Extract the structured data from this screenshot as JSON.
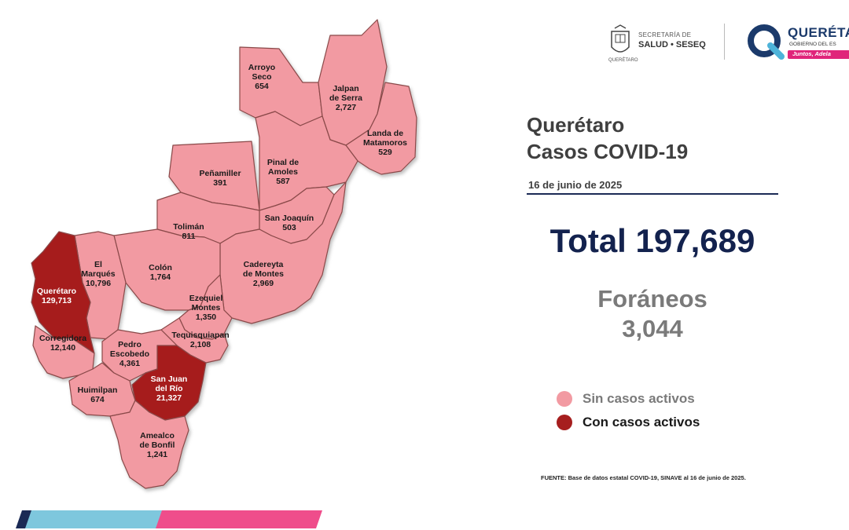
{
  "header": {
    "secretaria_line1": "SECRETARÍA DE",
    "secretaria_line2": "SALUD • SESEQ",
    "crest_caption": "QUERÉTARO",
    "gov_title": "QUERÉTA",
    "gov_subtitle": "GOBIERNO DEL ES",
    "gov_slogan": "Juntos, Adela"
  },
  "report": {
    "title_line1": "Querétaro",
    "title_line2": "Casos COVID-19",
    "date": "16 de junio de 2025",
    "total": "Total 197,689",
    "foraneos_label": "Foráneos",
    "foraneos_value": "3,044"
  },
  "legend": {
    "items": [
      {
        "label": "Sin casos activos",
        "color": "#f29aa2"
      },
      {
        "label": "Con casos activos",
        "color": "#a61e1e"
      }
    ]
  },
  "source": "FUENTE: Base de datos estatal  COVID-19,  SINAVE  al 16 de junio de 2025.",
  "map": {
    "municipalities": [
      {
        "id": "arroyo-seco",
        "label_lines": [
          "Arroyo",
          "Seco"
        ],
        "cases": "654",
        "active": false
      },
      {
        "id": "jalpan-de-serra",
        "label_lines": [
          "Jalpan",
          "de Serra"
        ],
        "cases": "2,727",
        "active": false
      },
      {
        "id": "landa-de-matamoros",
        "label_lines": [
          "Landa de",
          "Matamoros"
        ],
        "cases": "529",
        "active": false
      },
      {
        "id": "pinal-de-amoles",
        "label_lines": [
          "Pinal de",
          "Amoles"
        ],
        "cases": "587",
        "active": false
      },
      {
        "id": "penamiller",
        "label_lines": [
          "Peñamiller"
        ],
        "cases": "391",
        "active": false
      },
      {
        "id": "san-joaquin",
        "label_lines": [
          "San Joaquín"
        ],
        "cases": "503",
        "active": false
      },
      {
        "id": "toliman",
        "label_lines": [
          "Tolimán"
        ],
        "cases": "811",
        "active": false
      },
      {
        "id": "cadereyta-de-montes",
        "label_lines": [
          "Cadereyta",
          "de Montes"
        ],
        "cases": "2,969",
        "active": false
      },
      {
        "id": "colon",
        "label_lines": [
          "Colón"
        ],
        "cases": "1,764",
        "active": false
      },
      {
        "id": "el-marques",
        "label_lines": [
          "El",
          "Marqués"
        ],
        "cases": "10,796",
        "active": false
      },
      {
        "id": "queretaro",
        "label_lines": [
          "Querétaro"
        ],
        "cases": "129,713",
        "active": true
      },
      {
        "id": "ezequiel-montes",
        "label_lines": [
          "Ezequiel",
          "Montes"
        ],
        "cases": "1,350",
        "active": false
      },
      {
        "id": "tequisquiapan",
        "label_lines": [
          "Tequisquiapan"
        ],
        "cases": "2,108",
        "active": false
      },
      {
        "id": "corregidora",
        "label_lines": [
          "Corregidora"
        ],
        "cases": "12,140",
        "active": false
      },
      {
        "id": "pedro-escobedo",
        "label_lines": [
          "Pedro",
          "Escobedo"
        ],
        "cases": "4,361",
        "active": false
      },
      {
        "id": "san-juan-del-rio",
        "label_lines": [
          "San Juan",
          "del Río"
        ],
        "cases": "21,327",
        "active": true
      },
      {
        "id": "huimilpan",
        "label_lines": [
          "Huimilpan"
        ],
        "cases": "674",
        "active": false
      },
      {
        "id": "amealco-de-bonfil",
        "label_lines": [
          "Amealco",
          "de Bonfil"
        ],
        "cases": "1,241",
        "active": false
      }
    ]
  }
}
